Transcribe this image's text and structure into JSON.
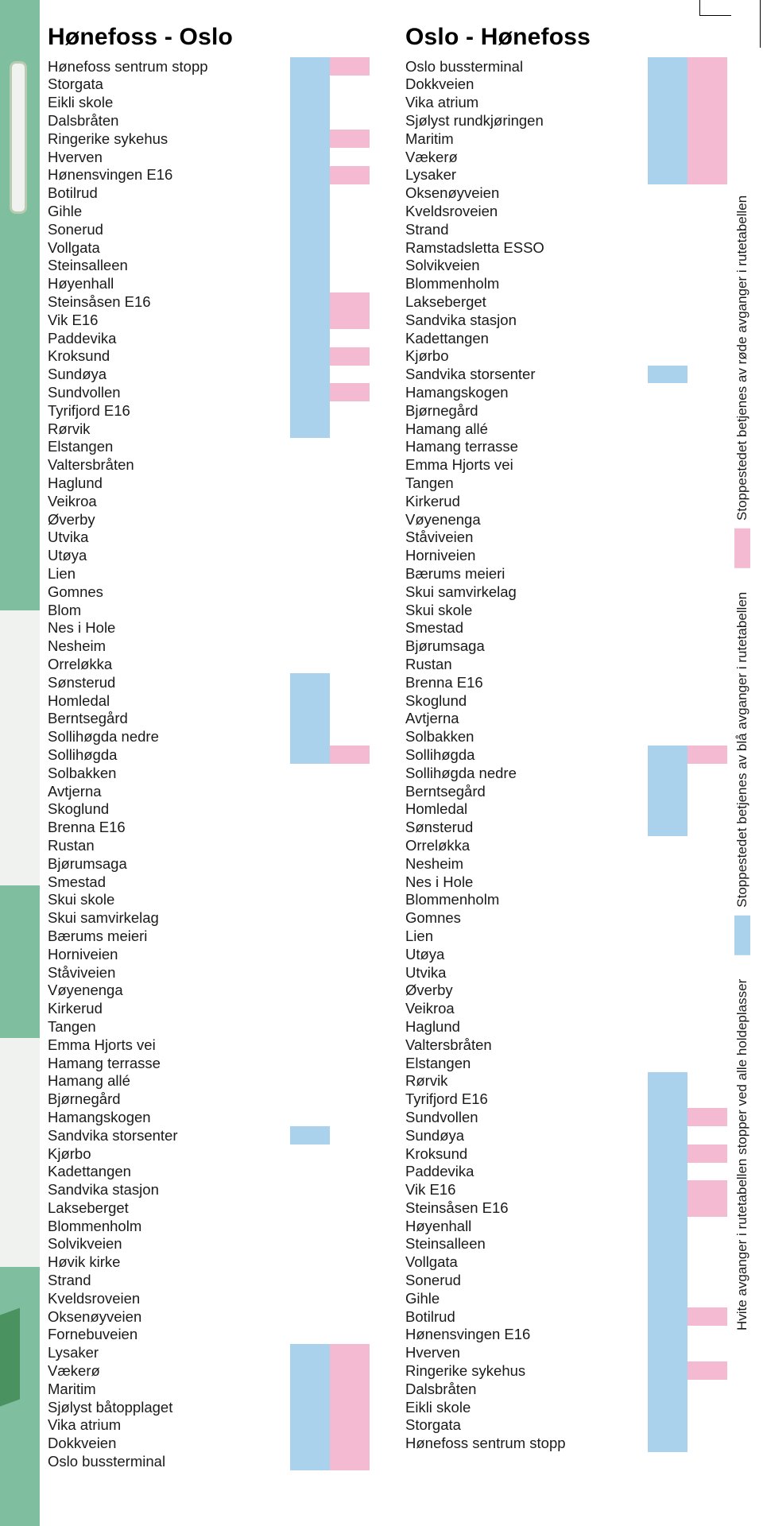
{
  "colors": {
    "blue": "#aad2ec",
    "pink": "#f4bad1",
    "green": "#7fbf9f",
    "white_edge": "#f0f2ef",
    "dkgreen": "#4a925f"
  },
  "left": {
    "title": "Hønefoss - Oslo",
    "stops": [
      {
        "name": "Hønefoss sentrum stopp",
        "b": 1,
        "p": 1
      },
      {
        "name": "Storgata",
        "b": 1,
        "p": 0
      },
      {
        "name": "Eikli skole",
        "b": 1,
        "p": 0
      },
      {
        "name": "Dalsbråten",
        "b": 1,
        "p": 0
      },
      {
        "name": "Ringerike sykehus",
        "b": 1,
        "p": 1
      },
      {
        "name": "Hverven",
        "b": 1,
        "p": 0
      },
      {
        "name": "Hønensvingen E16",
        "b": 1,
        "p": 1
      },
      {
        "name": "Botilrud",
        "b": 1,
        "p": 0
      },
      {
        "name": "Gihle",
        "b": 1,
        "p": 0
      },
      {
        "name": "Sonerud",
        "b": 1,
        "p": 0
      },
      {
        "name": "Vollgata",
        "b": 1,
        "p": 0
      },
      {
        "name": "Steinsalleen",
        "b": 1,
        "p": 0
      },
      {
        "name": "Høyenhall",
        "b": 1,
        "p": 0
      },
      {
        "name": "Steinsåsen E16",
        "b": 1,
        "p": 1
      },
      {
        "name": "Vik E16",
        "b": 1,
        "p": 1
      },
      {
        "name": "Paddevika",
        "b": 1,
        "p": 0
      },
      {
        "name": "Kroksund",
        "b": 1,
        "p": 1
      },
      {
        "name": "Sundøya",
        "b": 1,
        "p": 0
      },
      {
        "name": "Sundvollen",
        "b": 1,
        "p": 1
      },
      {
        "name": "Tyrifjord E16",
        "b": 1,
        "p": 0
      },
      {
        "name": "Rørvik",
        "b": 1,
        "p": 0
      },
      {
        "name": "Elstangen",
        "b": 0,
        "p": 0
      },
      {
        "name": "Valtersbråten",
        "b": 0,
        "p": 0
      },
      {
        "name": "Haglund",
        "b": 0,
        "p": 0
      },
      {
        "name": "Veikroa",
        "b": 0,
        "p": 0
      },
      {
        "name": "Øverby",
        "b": 0,
        "p": 0
      },
      {
        "name": "Utvika",
        "b": 0,
        "p": 0
      },
      {
        "name": "Utøya",
        "b": 0,
        "p": 0
      },
      {
        "name": "Lien",
        "b": 0,
        "p": 0
      },
      {
        "name": "Gomnes",
        "b": 0,
        "p": 0
      },
      {
        "name": "Blom",
        "b": 0,
        "p": 0
      },
      {
        "name": "Nes i Hole",
        "b": 0,
        "p": 0
      },
      {
        "name": "Nesheim",
        "b": 0,
        "p": 0
      },
      {
        "name": "Orreløkka",
        "b": 0,
        "p": 0
      },
      {
        "name": "Sønsterud",
        "b": 1,
        "p": 0
      },
      {
        "name": "Homledal",
        "b": 1,
        "p": 0
      },
      {
        "name": "Berntsegård",
        "b": 1,
        "p": 0
      },
      {
        "name": "Sollihøgda nedre",
        "b": 1,
        "p": 0
      },
      {
        "name": "Sollihøgda",
        "b": 1,
        "p": 1
      },
      {
        "name": "Solbakken",
        "b": 0,
        "p": 0
      },
      {
        "name": "Avtjerna",
        "b": 0,
        "p": 0
      },
      {
        "name": "Skoglund",
        "b": 0,
        "p": 0
      },
      {
        "name": "Brenna E16",
        "b": 0,
        "p": 0
      },
      {
        "name": "Rustan",
        "b": 0,
        "p": 0
      },
      {
        "name": "Bjørumsaga",
        "b": 0,
        "p": 0
      },
      {
        "name": "Smestad",
        "b": 0,
        "p": 0
      },
      {
        "name": "Skui skole",
        "b": 0,
        "p": 0
      },
      {
        "name": "Skui samvirkelag",
        "b": 0,
        "p": 0
      },
      {
        "name": "Bærums meieri",
        "b": 0,
        "p": 0
      },
      {
        "name": "Horniveien",
        "b": 0,
        "p": 0
      },
      {
        "name": "Ståviveien",
        "b": 0,
        "p": 0
      },
      {
        "name": "Vøyenenga",
        "b": 0,
        "p": 0
      },
      {
        "name": "Kirkerud",
        "b": 0,
        "p": 0
      },
      {
        "name": "Tangen",
        "b": 0,
        "p": 0
      },
      {
        "name": "Emma Hjorts vei",
        "b": 0,
        "p": 0
      },
      {
        "name": "Hamang terrasse",
        "b": 0,
        "p": 0
      },
      {
        "name": "Hamang allé",
        "b": 0,
        "p": 0
      },
      {
        "name": "Bjørnegård",
        "b": 0,
        "p": 0
      },
      {
        "name": "Hamangskogen",
        "b": 0,
        "p": 0
      },
      {
        "name": "Sandvika storsenter",
        "b": 1,
        "p": 0
      },
      {
        "name": "Kjørbo",
        "b": 0,
        "p": 0
      },
      {
        "name": "Kadettangen",
        "b": 0,
        "p": 0
      },
      {
        "name": "Sandvika stasjon",
        "b": 0,
        "p": 0
      },
      {
        "name": "Lakseberget",
        "b": 0,
        "p": 0
      },
      {
        "name": "Blommenholm",
        "b": 0,
        "p": 0
      },
      {
        "name": "Solvikveien",
        "b": 0,
        "p": 0
      },
      {
        "name": "Høvik kirke",
        "b": 0,
        "p": 0
      },
      {
        "name": "Strand",
        "b": 0,
        "p": 0
      },
      {
        "name": "Kveldsroveien",
        "b": 0,
        "p": 0
      },
      {
        "name": "Oksenøyveien",
        "b": 0,
        "p": 0
      },
      {
        "name": "Fornebuveien",
        "b": 0,
        "p": 0
      },
      {
        "name": "Lysaker",
        "b": 1,
        "p": 1
      },
      {
        "name": "Vækerø",
        "b": 1,
        "p": 1
      },
      {
        "name": "Maritim",
        "b": 1,
        "p": 1
      },
      {
        "name": "Sjølyst båtopplaget",
        "b": 1,
        "p": 1
      },
      {
        "name": "Vika atrium",
        "b": 1,
        "p": 1
      },
      {
        "name": "Dokkveien",
        "b": 1,
        "p": 1
      },
      {
        "name": "Oslo bussterminal",
        "b": 1,
        "p": 1
      }
    ]
  },
  "right": {
    "title": "Oslo - Hønefoss",
    "stops": [
      {
        "name": "Oslo bussterminal",
        "b": 1,
        "p": 1
      },
      {
        "name": "Dokkveien",
        "b": 1,
        "p": 1
      },
      {
        "name": "Vika atrium",
        "b": 1,
        "p": 1
      },
      {
        "name": "Sjølyst rundkjøringen",
        "b": 1,
        "p": 1
      },
      {
        "name": "Maritim",
        "b": 1,
        "p": 1
      },
      {
        "name": "Vækerø",
        "b": 1,
        "p": 1
      },
      {
        "name": "Lysaker",
        "b": 1,
        "p": 1
      },
      {
        "name": "Oksenøyveien",
        "b": 0,
        "p": 0
      },
      {
        "name": "Kveldsroveien",
        "b": 0,
        "p": 0
      },
      {
        "name": "Strand",
        "b": 0,
        "p": 0
      },
      {
        "name": "Ramstadsletta ESSO",
        "b": 0,
        "p": 0
      },
      {
        "name": "Solvikveien",
        "b": 0,
        "p": 0
      },
      {
        "name": "Blommenholm",
        "b": 0,
        "p": 0
      },
      {
        "name": "Lakseberget",
        "b": 0,
        "p": 0
      },
      {
        "name": "Sandvika stasjon",
        "b": 0,
        "p": 0
      },
      {
        "name": "Kadettangen",
        "b": 0,
        "p": 0
      },
      {
        "name": "Kjørbo",
        "b": 0,
        "p": 0
      },
      {
        "name": "Sandvika storsenter",
        "b": 1,
        "p": 0
      },
      {
        "name": "Hamangskogen",
        "b": 0,
        "p": 0
      },
      {
        "name": "Bjørnegård",
        "b": 0,
        "p": 0
      },
      {
        "name": "Hamang allé",
        "b": 0,
        "p": 0
      },
      {
        "name": "Hamang terrasse",
        "b": 0,
        "p": 0
      },
      {
        "name": "Emma Hjorts vei",
        "b": 0,
        "p": 0
      },
      {
        "name": "Tangen",
        "b": 0,
        "p": 0
      },
      {
        "name": "Kirkerud",
        "b": 0,
        "p": 0
      },
      {
        "name": "Vøyenenga",
        "b": 0,
        "p": 0
      },
      {
        "name": "Ståviveien",
        "b": 0,
        "p": 0
      },
      {
        "name": "Horniveien",
        "b": 0,
        "p": 0
      },
      {
        "name": "Bærums meieri",
        "b": 0,
        "p": 0
      },
      {
        "name": "Skui samvirkelag",
        "b": 0,
        "p": 0
      },
      {
        "name": "Skui skole",
        "b": 0,
        "p": 0
      },
      {
        "name": "Smestad",
        "b": 0,
        "p": 0
      },
      {
        "name": "Bjørumsaga",
        "b": 0,
        "p": 0
      },
      {
        "name": "Rustan",
        "b": 0,
        "p": 0
      },
      {
        "name": "Brenna E16",
        "b": 0,
        "p": 0
      },
      {
        "name": "Skoglund",
        "b": 0,
        "p": 0
      },
      {
        "name": "Avtjerna",
        "b": 0,
        "p": 0
      },
      {
        "name": "Solbakken",
        "b": 0,
        "p": 0
      },
      {
        "name": "Sollihøgda",
        "b": 1,
        "p": 1
      },
      {
        "name": "Sollihøgda nedre",
        "b": 1,
        "p": 0
      },
      {
        "name": "Berntsegård",
        "b": 1,
        "p": 0
      },
      {
        "name": "Homledal",
        "b": 1,
        "p": 0
      },
      {
        "name": "Sønsterud",
        "b": 1,
        "p": 0
      },
      {
        "name": "Orreløkka",
        "b": 0,
        "p": 0
      },
      {
        "name": "Nesheim",
        "b": 0,
        "p": 0
      },
      {
        "name": "Nes i Hole",
        "b": 0,
        "p": 0
      },
      {
        "name": "Blommenholm",
        "b": 0,
        "p": 0
      },
      {
        "name": "Gomnes",
        "b": 0,
        "p": 0
      },
      {
        "name": "Lien",
        "b": 0,
        "p": 0
      },
      {
        "name": "Utøya",
        "b": 0,
        "p": 0
      },
      {
        "name": "Utvika",
        "b": 0,
        "p": 0
      },
      {
        "name": "Øverby",
        "b": 0,
        "p": 0
      },
      {
        "name": "Veikroa",
        "b": 0,
        "p": 0
      },
      {
        "name": "Haglund",
        "b": 0,
        "p": 0
      },
      {
        "name": "Valtersbråten",
        "b": 0,
        "p": 0
      },
      {
        "name": "Elstangen",
        "b": 0,
        "p": 0
      },
      {
        "name": "Rørvik",
        "b": 1,
        "p": 0
      },
      {
        "name": "Tyrifjord E16",
        "b": 1,
        "p": 0
      },
      {
        "name": "Sundvollen",
        "b": 1,
        "p": 1
      },
      {
        "name": "Sundøya",
        "b": 1,
        "p": 0
      },
      {
        "name": "Kroksund",
        "b": 1,
        "p": 1
      },
      {
        "name": "Paddevika",
        "b": 1,
        "p": 0
      },
      {
        "name": "Vik E16",
        "b": 1,
        "p": 1
      },
      {
        "name": "Steinsåsen E16",
        "b": 1,
        "p": 1
      },
      {
        "name": "Høyenhall",
        "b": 1,
        "p": 0
      },
      {
        "name": "Steinsalleen",
        "b": 1,
        "p": 0
      },
      {
        "name": "Vollgata",
        "b": 1,
        "p": 0
      },
      {
        "name": "Sonerud",
        "b": 1,
        "p": 0
      },
      {
        "name": "Gihle",
        "b": 1,
        "p": 0
      },
      {
        "name": "Botilrud",
        "b": 1,
        "p": 1
      },
      {
        "name": "Hønensvingen E16",
        "b": 1,
        "p": 0
      },
      {
        "name": "Hverven",
        "b": 1,
        "p": 0
      },
      {
        "name": "Ringerike sykehus",
        "b": 1,
        "p": 1
      },
      {
        "name": "Dalsbråten",
        "b": 1,
        "p": 0
      },
      {
        "name": "Eikli skole",
        "b": 1,
        "p": 0
      },
      {
        "name": "Storgata",
        "b": 1,
        "p": 0
      },
      {
        "name": "Hønefoss sentrum stopp",
        "b": 1,
        "p": 0
      }
    ]
  },
  "legend": {
    "white": "Hvite avganger i rutetabellen stopper ved alle holdeplasser",
    "blue": "Stoppestedet betjenes av blå avganger i rutetabellen",
    "pink": "Stoppestedet betjenes av røde avganger i rutetabellen"
  }
}
